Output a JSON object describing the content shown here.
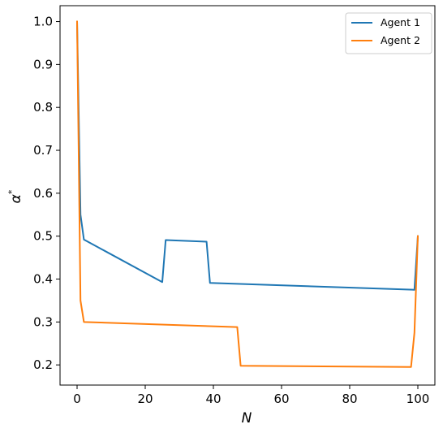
{
  "chart_data": {
    "type": "line",
    "title": "",
    "xlabel": "N",
    "ylabel": "α*",
    "ylabel_base": "α",
    "ylabel_sup": "*",
    "xlim": [
      -5,
      105
    ],
    "ylim": [
      0.153,
      1.037
    ],
    "xticks": [
      0,
      20,
      40,
      60,
      80,
      100
    ],
    "xtick_labels": [
      "0",
      "20",
      "40",
      "60",
      "80",
      "100"
    ],
    "yticks": [
      0.2,
      0.3,
      0.4,
      0.5,
      0.6,
      0.7,
      0.8,
      0.9,
      1.0
    ],
    "ytick_labels": [
      "0.2",
      "0.3",
      "0.4",
      "0.5",
      "0.6",
      "0.7",
      "0.8",
      "0.9",
      "1.0"
    ],
    "grid": false,
    "legend_position": "top-right",
    "series": [
      {
        "name": "Agent 1",
        "color": "#1f77b4",
        "points": [
          [
            0,
            1.0
          ],
          [
            1,
            0.55
          ],
          [
            2,
            0.492
          ],
          [
            25,
            0.393
          ],
          [
            26,
            0.491
          ],
          [
            38,
            0.487
          ],
          [
            39,
            0.391
          ],
          [
            99,
            0.375
          ],
          [
            100,
            0.5
          ]
        ]
      },
      {
        "name": "Agent 2",
        "color": "#ff7f0e",
        "points": [
          [
            0,
            1.0
          ],
          [
            1,
            0.35
          ],
          [
            2,
            0.3
          ],
          [
            47,
            0.288
          ],
          [
            48,
            0.198
          ],
          [
            98,
            0.195
          ],
          [
            99,
            0.275
          ],
          [
            100,
            0.5
          ]
        ]
      }
    ]
  }
}
